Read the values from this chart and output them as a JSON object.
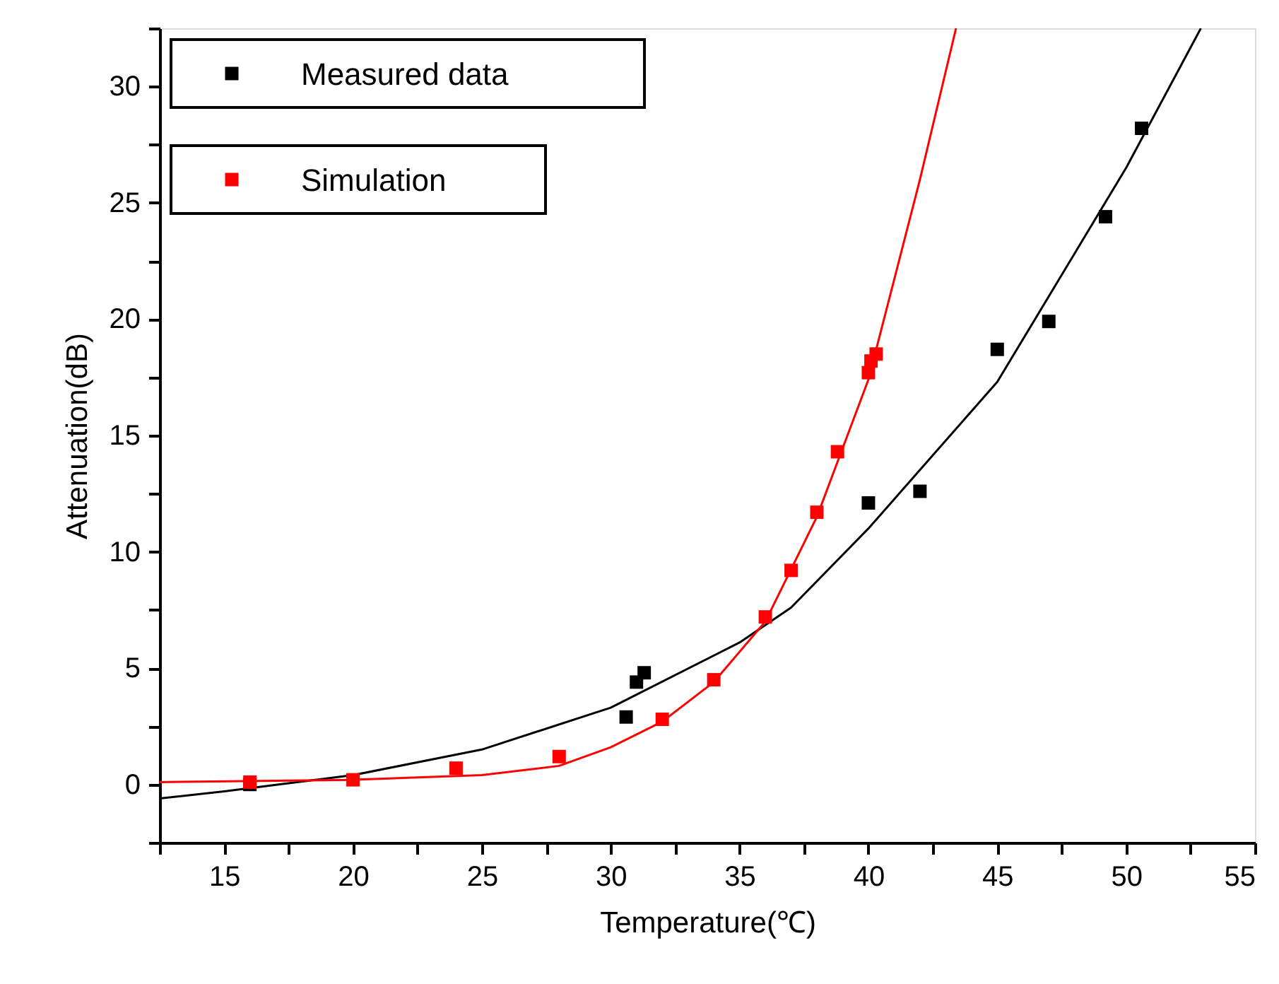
{
  "chart_data": {
    "type": "scatter",
    "xlabel": "Temperature(℃)",
    "ylabel": "Attenuation(dB)",
    "xlim": [
      12.5,
      55
    ],
    "ylim": [
      -2.5,
      32.5
    ],
    "xticks": [
      {
        "value": 12.5,
        "label": null
      },
      15,
      {
        "value": 17.5,
        "label": null
      },
      20,
      {
        "value": 22.5,
        "label": null
      },
      25,
      {
        "value": 27.5,
        "label": null
      },
      30,
      {
        "value": 32.5,
        "label": null
      },
      35,
      {
        "value": 37.5,
        "label": null
      },
      40,
      {
        "value": 42.5,
        "label": null
      },
      45,
      {
        "value": 47.5,
        "label": null
      },
      50,
      {
        "value": 52.5,
        "label": null
      },
      55
    ],
    "yticks": [
      {
        "value": -2.5,
        "label": null
      },
      0,
      {
        "value": 2.5,
        "label": null
      },
      5,
      {
        "value": 7.5,
        "label": null
      },
      10,
      {
        "value": 12.5,
        "label": null
      },
      15,
      {
        "value": 17.5,
        "label": null
      },
      20,
      {
        "value": 22.5,
        "label": null
      },
      25,
      {
        "value": 27.5,
        "label": null
      },
      30,
      {
        "value": 32.5,
        "label": null
      }
    ],
    "grid": false,
    "legend": "top left",
    "series": [
      {
        "type": "line",
        "color": "#000000",
        "x": [
          12.5,
          15,
          20,
          25,
          30,
          35,
          37,
          40,
          45,
          50,
          52.9
        ],
        "values": [
          -0.6,
          -0.3,
          0.4,
          1.5,
          3.3,
          6.1,
          7.6,
          11,
          17.3,
          26.5,
          32.5
        ]
      },
      {
        "type": "line",
        "color": "#ff0000",
        "x": [
          12.5,
          20,
          25,
          28,
          30,
          32,
          34,
          36,
          38,
          40,
          42,
          43.4
        ],
        "values": [
          0.1,
          0.2,
          0.4,
          0.8,
          1.6,
          2.7,
          4.4,
          7.0,
          11.5,
          17.4,
          26,
          32.5
        ]
      },
      {
        "name": "Measured data",
        "marker": "square",
        "color": "#000000",
        "x": [
          16,
          30.6,
          31,
          31.3,
          40,
          42,
          45,
          47,
          49.2,
          50.6
        ],
        "values": [
          0,
          2.9,
          4.4,
          4.8,
          12.1,
          12.6,
          18.7,
          19.9,
          24.4,
          28.2
        ]
      },
      {
        "name": "Simulation",
        "marker": "square",
        "color": "#ff0000",
        "x": [
          16,
          20,
          24,
          28,
          32,
          34,
          36,
          37,
          38,
          38.8,
          40,
          40.1,
          40.3
        ],
        "values": [
          0.1,
          0.2,
          0.7,
          1.2,
          2.8,
          4.5,
          7.2,
          9.2,
          11.7,
          14.3,
          17.7,
          18.2,
          18.5
        ]
      }
    ]
  }
}
